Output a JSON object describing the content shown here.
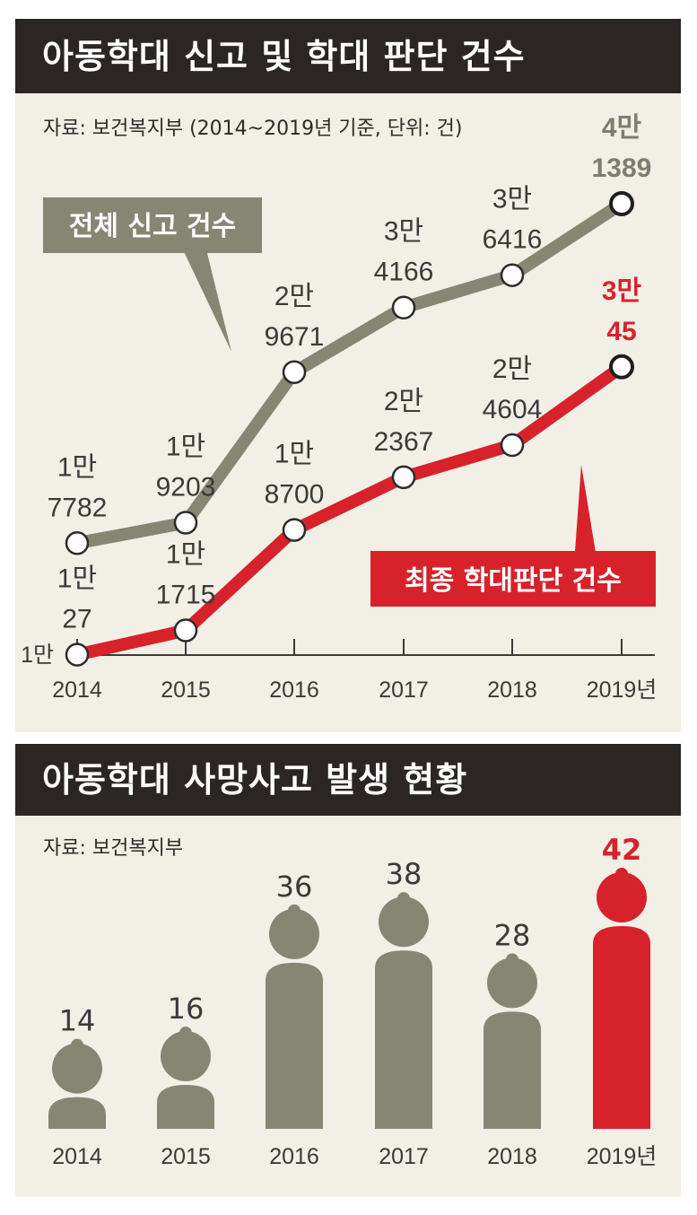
{
  "colors": {
    "gray": "#878673",
    "red": "#d7222b",
    "dark": "#2b2624",
    "panel": "#f2efe6"
  },
  "reports": {
    "title": "아동학대 신고 및 학대 판단 건수",
    "source": "자료: 보건복지부 (2014~2019년 기준, 단위: 건)",
    "baseline_label": "1만",
    "callout_total": "전체 신고 건수",
    "callout_abuse": "최종 학대판단 건수"
  },
  "deaths": {
    "title": "아동학대 사망사고 발생 현황",
    "source": "자료: 보건복지부"
  },
  "chart_data": [
    {
      "type": "line",
      "title": "아동학대 신고 및 학대 판단 건수",
      "x": [
        "2014",
        "2015",
        "2016",
        "2017",
        "2018",
        "2019년"
      ],
      "series": [
        {
          "name": "전체 신고 건수",
          "values": [
            17782,
            19203,
            29671,
            34166,
            36416,
            41389
          ],
          "labels": [
            [
              "1만",
              "7782"
            ],
            [
              "1만",
              "9203"
            ],
            [
              "2만",
              "9671"
            ],
            [
              "3만",
              "4166"
            ],
            [
              "3만",
              "6416"
            ],
            [
              "4만",
              "1389"
            ]
          ]
        },
        {
          "name": "최종 학대판단 건수",
          "values": [
            10027,
            11715,
            18700,
            22367,
            24604,
            30045
          ],
          "labels": [
            [
              "1만",
              "27"
            ],
            [
              "1만",
              "1715"
            ],
            [
              "1만",
              "8700"
            ],
            [
              "2만",
              "2367"
            ],
            [
              "2만",
              "4604"
            ],
            [
              "3만",
              "45"
            ]
          ]
        }
      ]
    },
    {
      "type": "bar",
      "title": "아동학대 사망사고 발생 현황",
      "categories": [
        "2014",
        "2015",
        "2016",
        "2017",
        "2018",
        "2019년"
      ],
      "values": [
        14,
        16,
        36,
        38,
        28,
        42
      ],
      "highlight_index": 5
    }
  ]
}
